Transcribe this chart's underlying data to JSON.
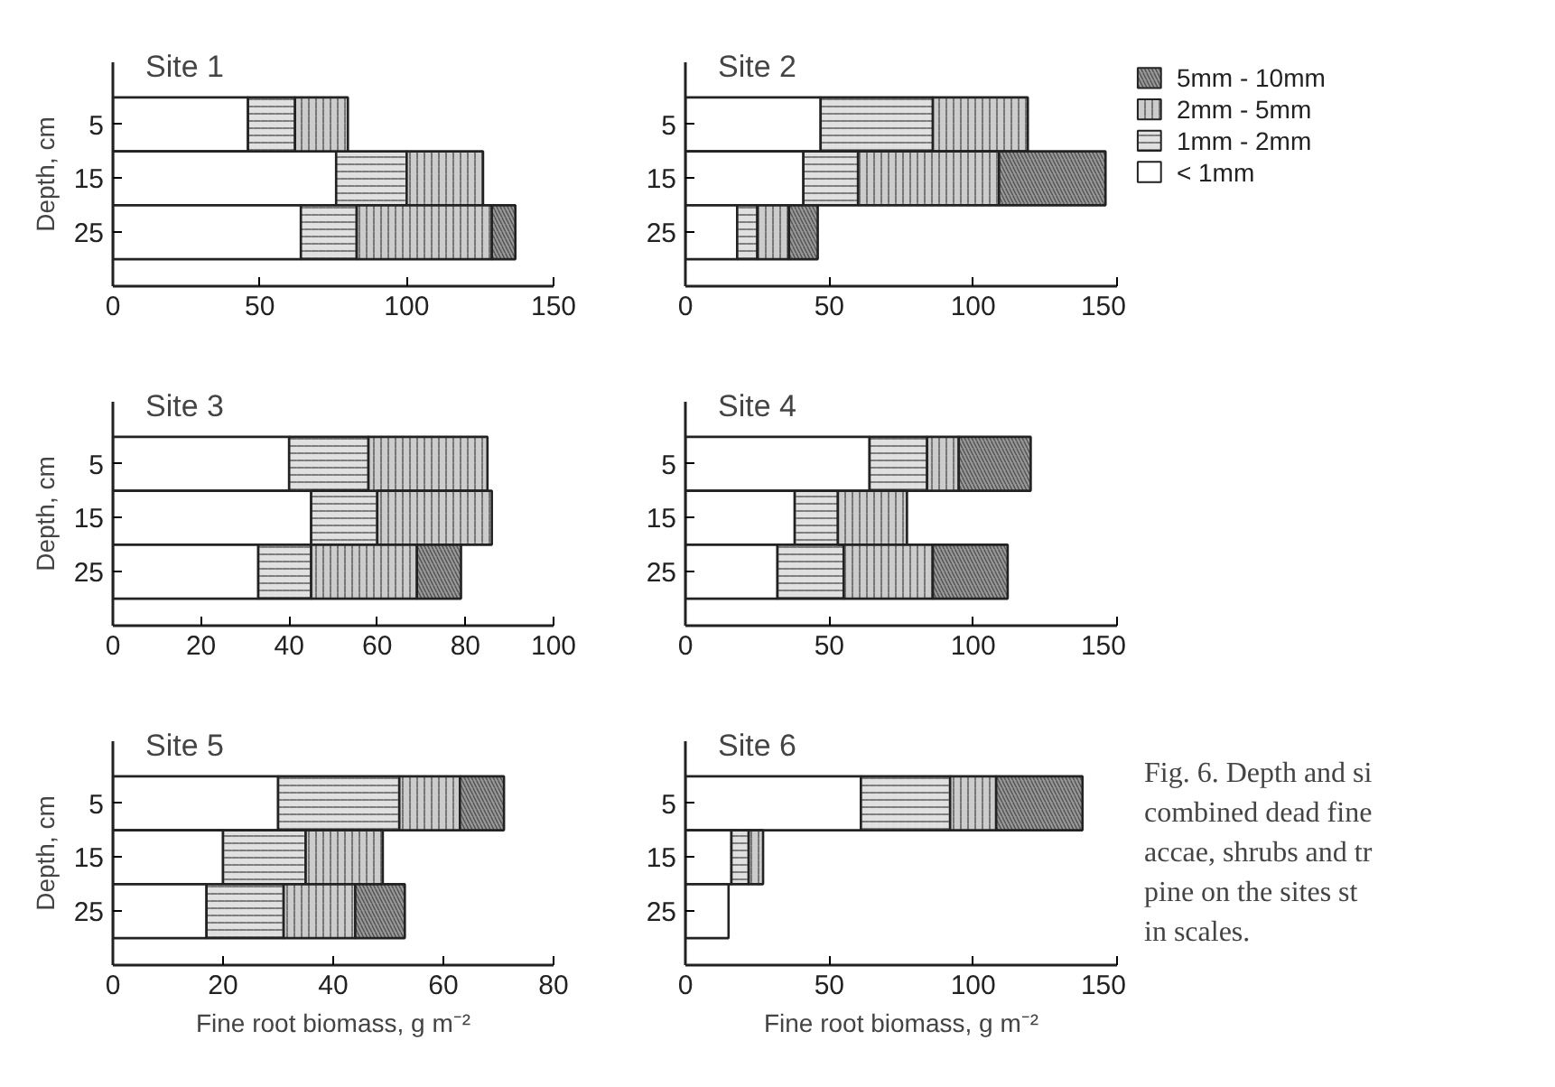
{
  "chart_data": [
    {
      "type": "bar",
      "orientation": "horizontal",
      "stacked": true,
      "title": "Site 1",
      "ylabel": "Depth, cm",
      "categories": [
        "5",
        "15",
        "25"
      ],
      "xlim": [
        0,
        150
      ],
      "xticks": [
        0,
        50,
        100,
        150
      ],
      "grid": false,
      "series": [
        {
          "color": "#ffffff",
          "values": [
            46,
            76,
            64
          ]
        },
        {
          "color": "#e0e0e0",
          "values": [
            16,
            24,
            19
          ]
        },
        {
          "color": "#cccccc",
          "values": [
            18,
            26,
            46
          ]
        },
        {
          "color": "#9a9a9a",
          "values": [
            0,
            0,
            8
          ]
        }
      ]
    },
    {
      "type": "bar",
      "orientation": "horizontal",
      "stacked": true,
      "title": "Site 2",
      "categories": [
        "5",
        "15",
        "25"
      ],
      "xlim": [
        0,
        150
      ],
      "xticks": [
        0,
        50,
        100,
        150
      ],
      "grid": false,
      "legend": "right",
      "series": [
        {
          "name": "< 1mm",
          "color": "#ffffff",
          "values": [
            47,
            41,
            18
          ]
        },
        {
          "name": "1mm - 2mm",
          "color": "#e0e0e0",
          "values": [
            39,
            19,
            7
          ]
        },
        {
          "name": "2mm - 5mm",
          "color": "#cccccc",
          "values": [
            33,
            49,
            11
          ]
        },
        {
          "name": "5mm - 10mm",
          "color": "#9a9a9a",
          "values": [
            0,
            37,
            10
          ]
        }
      ]
    },
    {
      "type": "bar",
      "orientation": "horizontal",
      "stacked": true,
      "title": "Site 3",
      "ylabel": "Depth, cm",
      "categories": [
        "5",
        "15",
        "25"
      ],
      "xlim": [
        0,
        100
      ],
      "xticks": [
        0,
        20,
        40,
        60,
        80,
        100
      ],
      "grid": false,
      "series": [
        {
          "color": "#ffffff",
          "values": [
            40,
            45,
            33
          ]
        },
        {
          "color": "#e0e0e0",
          "values": [
            18,
            15,
            12
          ]
        },
        {
          "color": "#cccccc",
          "values": [
            27,
            26,
            24
          ]
        },
        {
          "color": "#9a9a9a",
          "values": [
            0,
            0,
            10
          ]
        }
      ]
    },
    {
      "type": "bar",
      "orientation": "horizontal",
      "stacked": true,
      "title": "Site 4",
      "categories": [
        "5",
        "15",
        "25"
      ],
      "xlim": [
        0,
        150
      ],
      "xticks": [
        0,
        50,
        100,
        150
      ],
      "grid": false,
      "series": [
        {
          "color": "#ffffff",
          "values": [
            64,
            38,
            32
          ]
        },
        {
          "color": "#e0e0e0",
          "values": [
            20,
            15,
            23
          ]
        },
        {
          "color": "#cccccc",
          "values": [
            11,
            24,
            31
          ]
        },
        {
          "color": "#9a9a9a",
          "values": [
            25,
            0,
            26
          ]
        }
      ]
    },
    {
      "type": "bar",
      "orientation": "horizontal",
      "stacked": true,
      "title": "Site 5",
      "ylabel": "Depth, cm",
      "xlabel": "Fine root biomass, g m⁻²",
      "categories": [
        "5",
        "15",
        "25"
      ],
      "xlim": [
        0,
        80
      ],
      "xticks": [
        0,
        20,
        40,
        60,
        80
      ],
      "grid": false,
      "series": [
        {
          "color": "#ffffff",
          "values": [
            30,
            20,
            17
          ]
        },
        {
          "color": "#e0e0e0",
          "values": [
            22,
            15,
            14
          ]
        },
        {
          "color": "#cccccc",
          "values": [
            11,
            14,
            13
          ]
        },
        {
          "color": "#9a9a9a",
          "values": [
            8,
            0,
            9
          ]
        }
      ]
    },
    {
      "type": "bar",
      "orientation": "horizontal",
      "stacked": true,
      "title": "Site 6",
      "xlabel": "Fine root biomass, g m⁻²",
      "categories": [
        "5",
        "15",
        "25"
      ],
      "xlim": [
        0,
        150
      ],
      "xticks": [
        0,
        50,
        100,
        150
      ],
      "grid": false,
      "annotations": [
        "Fig. 6. Depth and si\ncombined dead fine\naccae, shrubs and tr\npine on the sites st\nin scales."
      ],
      "series": [
        {
          "color": "#ffffff",
          "values": [
            61,
            16,
            15
          ]
        },
        {
          "color": "#e0e0e0",
          "values": [
            31,
            6,
            0
          ]
        },
        {
          "color": "#cccccc",
          "values": [
            16,
            5,
            null
          ]
        },
        {
          "color": "#9a9a9a",
          "values": [
            30,
            0,
            0
          ]
        }
      ]
    }
  ]
}
